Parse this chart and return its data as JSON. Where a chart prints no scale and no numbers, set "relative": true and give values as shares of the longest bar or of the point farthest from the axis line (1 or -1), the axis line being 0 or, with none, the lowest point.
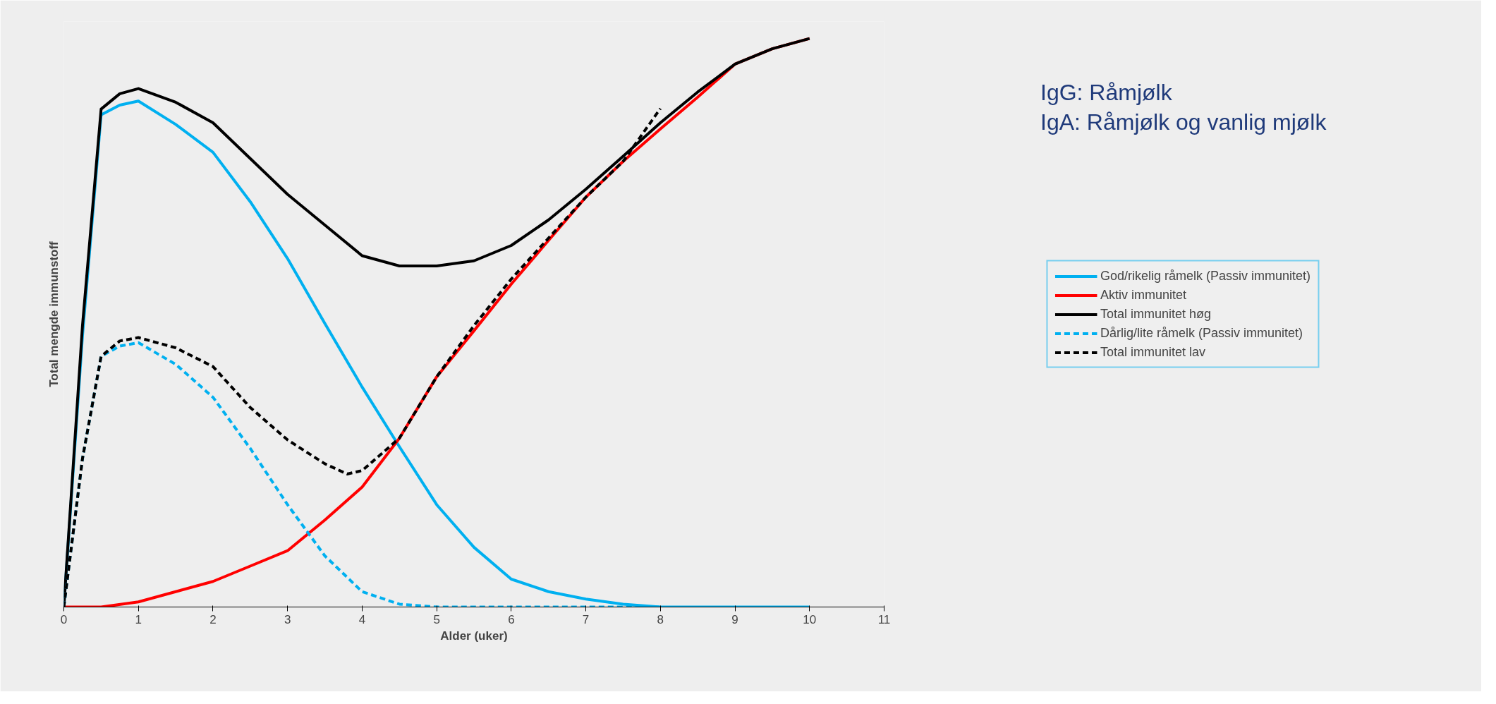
{
  "chart_data": {
    "type": "line",
    "relative": true,
    "xlabel": "Alder (uker)",
    "ylabel": "Total mengde immunstoff",
    "xlim": [
      0,
      11
    ],
    "xticks": [
      0,
      1,
      2,
      3,
      4,
      5,
      6,
      7,
      8,
      9,
      10,
      11
    ],
    "legend": "right",
    "marker": "none",
    "annotations": [
      "IgG: Råmjølk",
      "IgA: Råmjølk og vanlig mjølk"
    ],
    "series": [
      {
        "name": "God/rikelig råmelk (Passiv immunitet)",
        "color": "#00b0f0",
        "line_style": "solid",
        "x": [
          0,
          0.25,
          0.5,
          0.75,
          1,
          1.5,
          2,
          2.5,
          3,
          3.5,
          4,
          4.5,
          5,
          5.5,
          6,
          6.5,
          7,
          7.5,
          8,
          9,
          10
        ],
        "values": [
          0,
          0.477,
          0.866,
          0.883,
          0.89,
          0.849,
          0.8,
          0.713,
          0.613,
          0.499,
          0.387,
          0.282,
          0.18,
          0.105,
          0.049,
          0.027,
          0.014,
          0.005,
          0,
          0,
          0
        ]
      },
      {
        "name": "Aktiv immunitet",
        "color": "#ff0000",
        "line_style": "solid",
        "x": [
          0,
          0.5,
          1,
          1.5,
          2,
          2.5,
          3,
          3.5,
          4,
          4.5,
          5,
          5.5,
          6,
          6.5,
          7,
          7.5,
          8,
          8.5,
          9,
          9.5,
          10
        ],
        "values": [
          0,
          0,
          0.009,
          0.027,
          0.045,
          0.072,
          0.099,
          0.153,
          0.211,
          0.297,
          0.405,
          0.486,
          0.568,
          0.645,
          0.721,
          0.784,
          0.841,
          0.897,
          0.955,
          0.982,
          1.0
        ]
      },
      {
        "name": "Total immunitet høg",
        "color": "#000000",
        "line_style": "solid",
        "x": [
          0,
          0.25,
          0.5,
          0.75,
          1,
          1.5,
          2,
          2.5,
          3,
          3.5,
          4,
          4.5,
          5,
          5.5,
          6,
          6.5,
          7,
          7.5,
          8,
          8.5,
          9,
          9.5,
          10
        ],
        "values": [
          0,
          0.495,
          0.876,
          0.903,
          0.912,
          0.888,
          0.852,
          0.789,
          0.726,
          0.672,
          0.618,
          0.6,
          0.6,
          0.609,
          0.636,
          0.681,
          0.735,
          0.793,
          0.852,
          0.906,
          0.955,
          0.982,
          1.0
        ]
      },
      {
        "name": "Dårlig/lite råmelk (Passiv immunitet)",
        "color": "#00b0f0",
        "line_style": "dashed",
        "x": [
          0,
          0.25,
          0.5,
          0.75,
          1,
          1.5,
          2,
          2.5,
          3,
          3.5,
          4,
          4.5,
          5,
          6,
          7,
          8
        ],
        "values": [
          0,
          0.261,
          0.441,
          0.459,
          0.465,
          0.427,
          0.369,
          0.279,
          0.18,
          0.09,
          0.027,
          0.005,
          0,
          0,
          0,
          0
        ]
      },
      {
        "name": "Total immunitet lav",
        "color": "#000000",
        "line_style": "dashed",
        "x": [
          0,
          0.25,
          0.5,
          0.75,
          1,
          1.5,
          2,
          2.5,
          3,
          3.5,
          3.8,
          4,
          4.5,
          5,
          5.5,
          6,
          6.5,
          7,
          7.5,
          8
        ],
        "values": [
          0,
          0.261,
          0.441,
          0.468,
          0.474,
          0.456,
          0.423,
          0.351,
          0.294,
          0.252,
          0.234,
          0.24,
          0.297,
          0.405,
          0.495,
          0.577,
          0.649,
          0.721,
          0.784,
          0.877
        ]
      }
    ]
  }
}
